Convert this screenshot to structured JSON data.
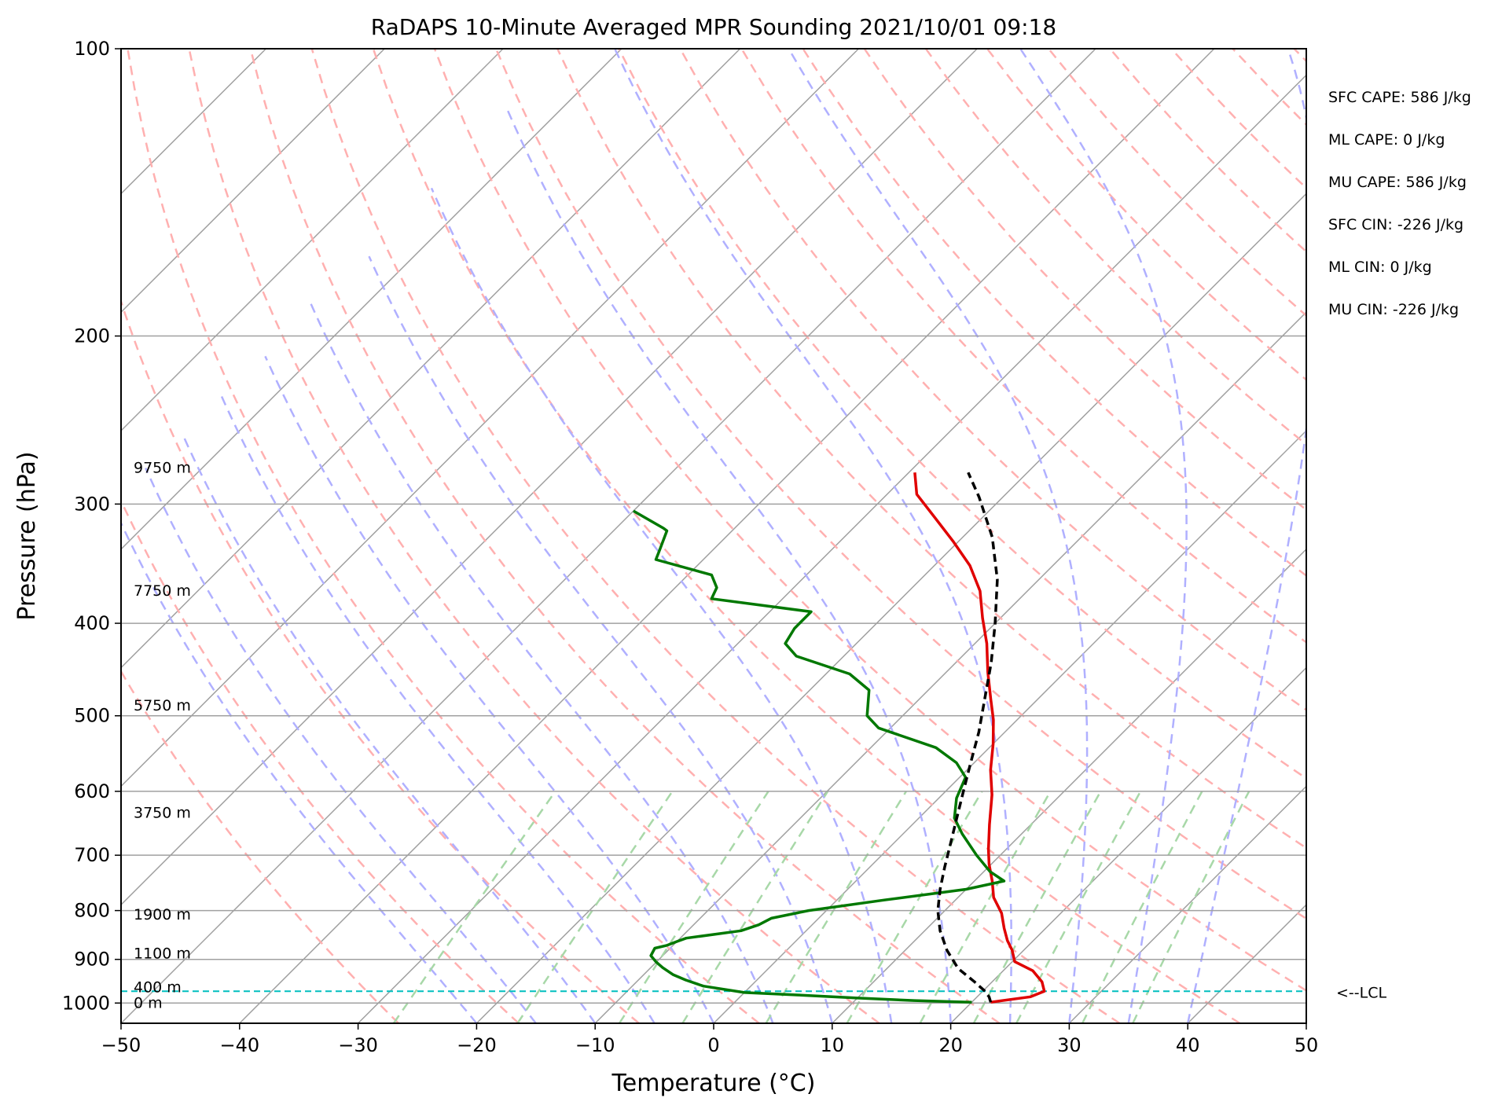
{
  "chart_data": {
    "type": "line",
    "title": "RaDAPS 10-Minute Averaged MPR Sounding 2021/10/01 09:18",
    "xlabel": "Temperature (°C)",
    "ylabel": "Pressure (hPa)",
    "xlim": [
      -50,
      50
    ],
    "ylim": [
      1050,
      100
    ],
    "y_scale": "log",
    "grid": true,
    "x_ticks": [
      -50,
      -40,
      -30,
      -20,
      -10,
      0,
      10,
      20,
      30,
      40,
      50
    ],
    "x_tick_labels": [
      "−50",
      "−40",
      "−30",
      "−20",
      "−10",
      "0",
      "10",
      "20",
      "30",
      "40",
      "50"
    ],
    "y_ticks": [
      100,
      200,
      300,
      400,
      500,
      600,
      700,
      800,
      900,
      1000
    ],
    "y_tick_labels": [
      "100",
      "200",
      "300",
      "400",
      "500",
      "600",
      "700",
      "800",
      "900",
      "1000"
    ],
    "series": [
      {
        "kind": "temperature",
        "color": "#e00000",
        "points": [
          [
            21.6,
            998
          ],
          [
            24.5,
            985
          ],
          [
            25.2,
            972
          ],
          [
            24.2,
            950
          ],
          [
            22.5,
            925
          ],
          [
            20.2,
            905
          ],
          [
            19.0,
            880
          ],
          [
            17.8,
            860
          ],
          [
            16.5,
            835
          ],
          [
            15.0,
            805
          ],
          [
            13.0,
            775
          ],
          [
            11.5,
            745
          ],
          [
            9.8,
            715
          ],
          [
            8.5,
            690
          ],
          [
            6.5,
            650
          ],
          [
            4.2,
            605
          ],
          [
            2.0,
            570
          ],
          [
            0.0,
            535
          ],
          [
            -2.0,
            505
          ],
          [
            -4.0,
            480
          ],
          [
            -6.5,
            450
          ],
          [
            -9.0,
            420
          ],
          [
            -11.5,
            395
          ],
          [
            -14.0,
            370
          ],
          [
            -17.0,
            348
          ],
          [
            -20.5,
            328
          ],
          [
            -24.0,
            310
          ],
          [
            -27.5,
            293
          ],
          [
            -29.5,
            278
          ]
        ]
      },
      {
        "kind": "dewpoint",
        "color": "#007800",
        "points": [
          [
            20.0,
            998
          ],
          [
            15.0,
            994
          ],
          [
            10.0,
            988
          ],
          [
            5.0,
            981
          ],
          [
            0.0,
            975
          ],
          [
            -4.0,
            960
          ],
          [
            -6.0,
            946
          ],
          [
            -7.5,
            934
          ],
          [
            -9.0,
            918
          ],
          [
            -10.0,
            906
          ],
          [
            -11.0,
            892
          ],
          [
            -11.3,
            876
          ],
          [
            -10.5,
            870
          ],
          [
            -10.0,
            862
          ],
          [
            -9.5,
            855
          ],
          [
            -5.5,
            840
          ],
          [
            -4.5,
            828
          ],
          [
            -4.0,
            815
          ],
          [
            -1.5,
            800
          ],
          [
            4.0,
            780
          ],
          [
            10.0,
            760
          ],
          [
            12.5,
            745
          ],
          [
            10.5,
            728
          ],
          [
            8.0,
            700
          ],
          [
            5.0,
            665
          ],
          [
            3.0,
            640
          ],
          [
            1.5,
            610
          ],
          [
            0.5,
            580
          ],
          [
            -1.5,
            560
          ],
          [
            -4.5,
            540
          ],
          [
            -11.0,
            515
          ],
          [
            -13.0,
            500
          ],
          [
            -15.0,
            470
          ],
          [
            -18.0,
            452
          ],
          [
            -24.0,
            433
          ],
          [
            -26.0,
            420
          ],
          [
            -26.5,
            405
          ],
          [
            -26.5,
            389
          ],
          [
            -36.0,
            377
          ],
          [
            -36.5,
            367
          ],
          [
            -38.0,
            356
          ],
          [
            -44.0,
            343
          ],
          [
            -44.5,
            335
          ],
          [
            -45.5,
            320
          ],
          [
            -46.0,
            318
          ],
          [
            -50.0,
            305
          ]
        ]
      },
      {
        "kind": "parcel",
        "color": "#000000",
        "dashed": true,
        "points": [
          [
            21.6,
            998
          ],
          [
            21.0,
            985
          ],
          [
            20.2,
            972
          ],
          [
            18.5,
            950
          ],
          [
            16.0,
            920
          ],
          [
            13.5,
            880
          ],
          [
            11.3,
            840
          ],
          [
            9.4,
            800
          ],
          [
            7.8,
            760
          ],
          [
            6.3,
            720
          ],
          [
            4.8,
            680
          ],
          [
            3.2,
            640
          ],
          [
            1.5,
            600
          ],
          [
            -0.3,
            560
          ],
          [
            -2.2,
            520
          ],
          [
            -4.5,
            480
          ],
          [
            -7.0,
            440
          ],
          [
            -10.0,
            400
          ],
          [
            -13.5,
            360
          ],
          [
            -17.5,
            325
          ],
          [
            -22.0,
            295
          ],
          [
            -25.0,
            278
          ]
        ]
      }
    ],
    "lcl": {
      "pressure": 972,
      "label": "<--LCL",
      "color": "#00bfbf"
    },
    "height_labels": [
      {
        "text": "9750 m",
        "pressure": 275
      },
      {
        "text": "7750 m",
        "pressure": 370
      },
      {
        "text": "5750 m",
        "pressure": 488
      },
      {
        "text": "3750 m",
        "pressure": 632
      },
      {
        "text": "1900 m",
        "pressure": 808
      },
      {
        "text": "1100 m",
        "pressure": 888
      },
      {
        "text": "400 m",
        "pressure": 963
      },
      {
        "text": "0 m",
        "pressure": 1000
      }
    ],
    "stats": [
      "SFC CAPE: 586 J/kg",
      "ML CAPE: 0 J/kg",
      "MU CAPE: 586 J/kg",
      "SFC CIN: -226 J/kg",
      "ML CIN: 0 J/kg",
      "MU CIN: -226 J/kg"
    ],
    "background_lines": {
      "isotherms_color": "#a0a0a0",
      "dry_adiabats_color": "#ffb0b0",
      "moist_adiabats_color": "#b0b0ff",
      "mixing_ratio_color": "#a8d8a8"
    }
  }
}
